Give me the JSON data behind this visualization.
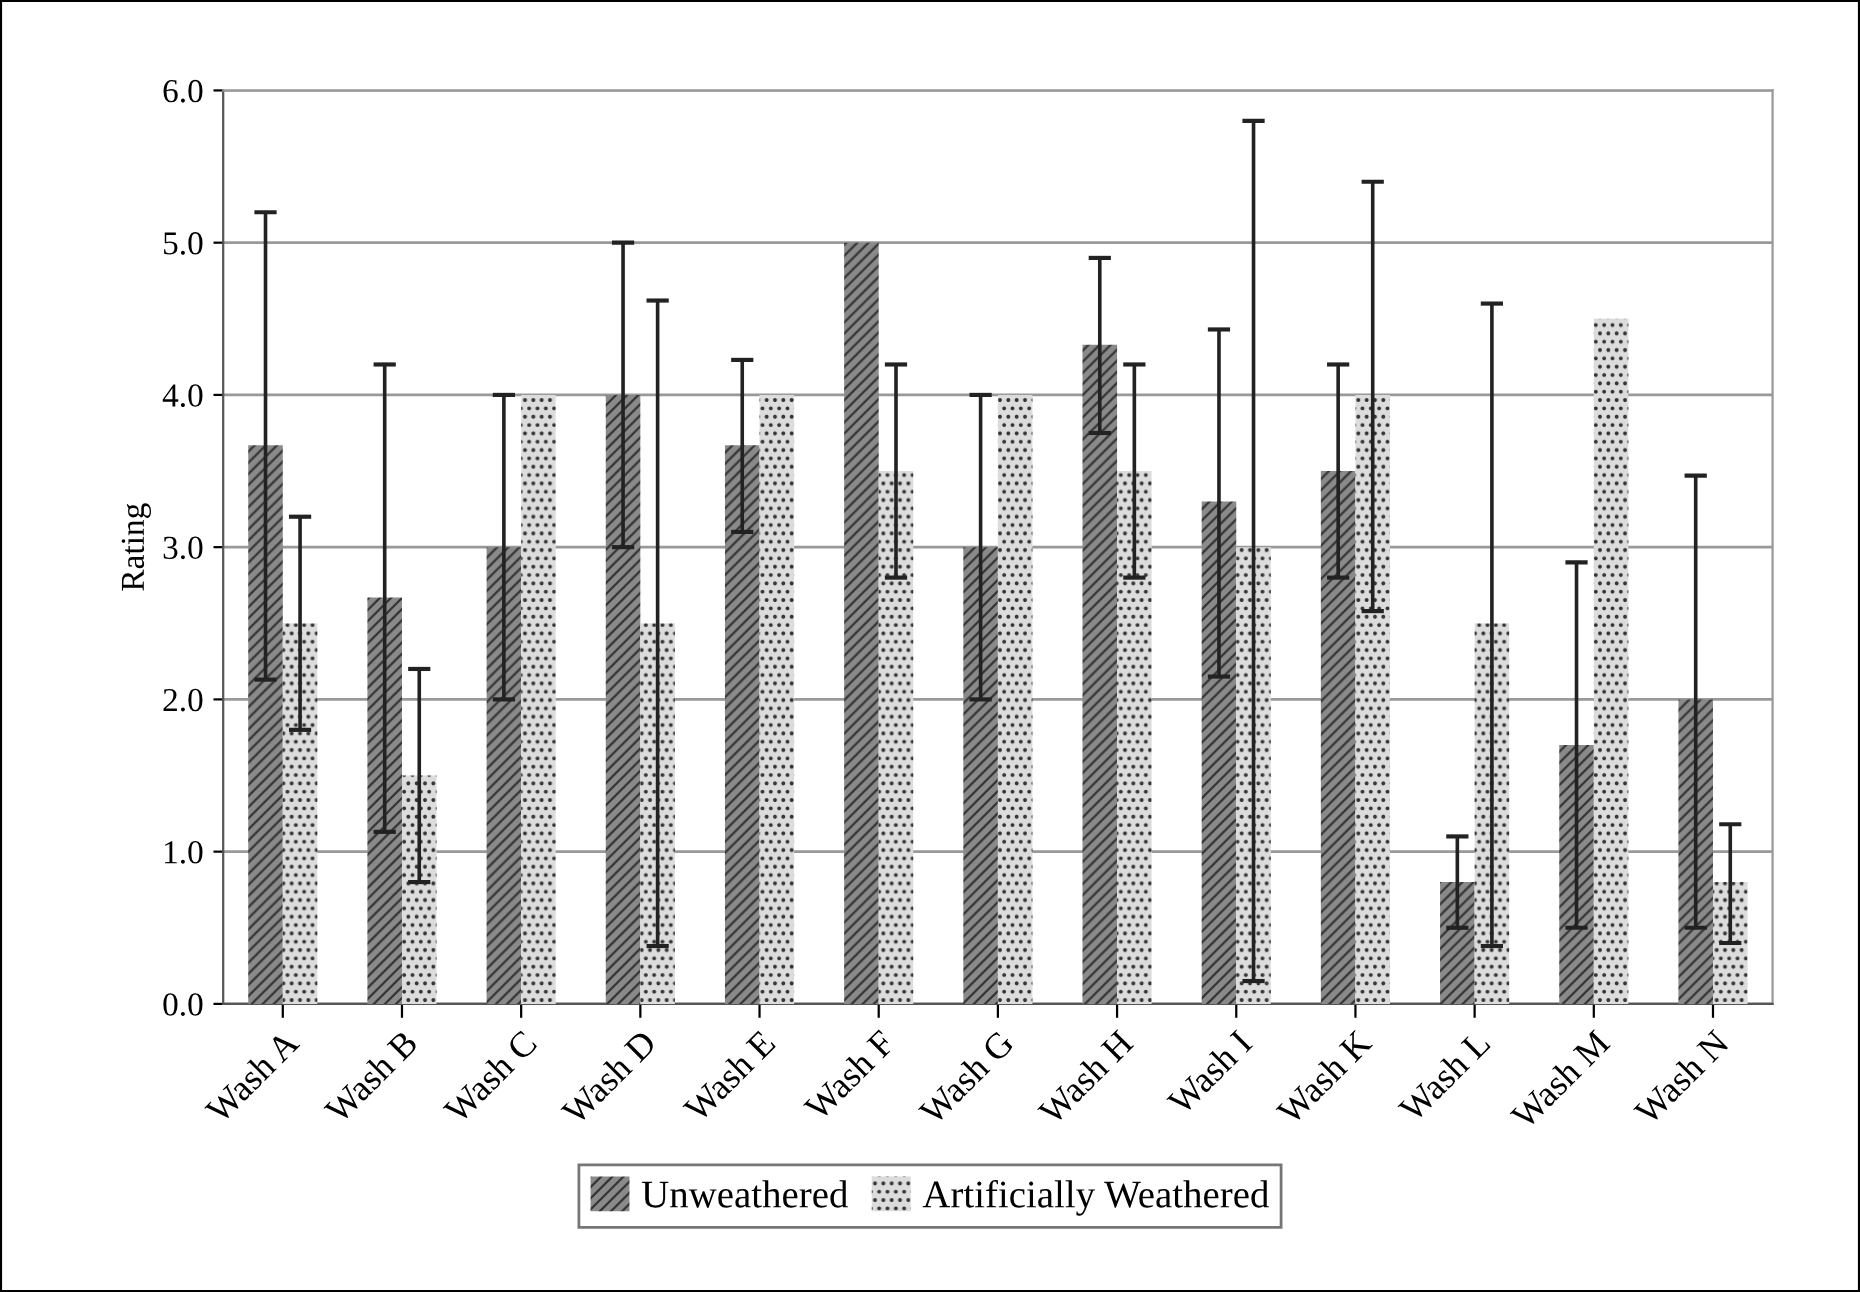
{
  "chart_data": {
    "type": "bar",
    "ylabel": "Rating",
    "categories": [
      "Wash A",
      "Wash B",
      "Wash C",
      "Wash D",
      "Wash E",
      "Wash F",
      "Wash G",
      "Wash H",
      "Wash I",
      "Wash K",
      "Wash L",
      "Wash M",
      "Wash N"
    ],
    "series": [
      {
        "name": "Unweathered",
        "color": "#8a8a8a",
        "values": [
          3.67,
          2.67,
          3.0,
          4.0,
          3.67,
          5.0,
          3.0,
          4.33,
          3.3,
          3.5,
          0.8,
          1.7,
          2.0
        ],
        "errors": [
          [
            2.13,
            5.2
          ],
          [
            1.13,
            4.2
          ],
          [
            2.0,
            4.0
          ],
          [
            3.0,
            5.0
          ],
          [
            3.1,
            4.23
          ],
          null,
          [
            2.0,
            4.0
          ],
          [
            3.75,
            4.9
          ],
          [
            2.15,
            4.43
          ],
          [
            2.8,
            4.2
          ],
          [
            0.5,
            1.1
          ],
          [
            0.5,
            2.9
          ],
          [
            0.5,
            3.47
          ]
        ]
      },
      {
        "name": "Artificially Weathered",
        "color": "#dcdcdc",
        "values": [
          2.5,
          1.5,
          4.0,
          2.5,
          4.0,
          3.5,
          4.0,
          3.5,
          3.0,
          4.0,
          2.5,
          4.5,
          0.8
        ],
        "errors": [
          [
            1.8,
            3.2
          ],
          [
            0.8,
            2.2
          ],
          null,
          [
            0.38,
            4.62
          ],
          null,
          [
            2.8,
            4.2
          ],
          null,
          [
            2.8,
            4.2
          ],
          [
            0.15,
            5.8
          ],
          [
            2.58,
            5.4
          ],
          [
            0.38,
            4.6
          ],
          null,
          [
            0.4,
            1.18
          ]
        ]
      }
    ],
    "ylim": [
      0,
      6
    ],
    "yticks": [
      {
        "value": 0,
        "label": "0.0"
      },
      {
        "value": 1,
        "label": "1.0"
      },
      {
        "value": 2,
        "label": "2.0"
      },
      {
        "value": 3,
        "label": "3.0"
      },
      {
        "value": 4,
        "label": "4.0"
      },
      {
        "value": 5,
        "label": "5.0"
      },
      {
        "value": 6,
        "label": "6.0"
      }
    ],
    "grid": "y",
    "legend": "bottom"
  }
}
